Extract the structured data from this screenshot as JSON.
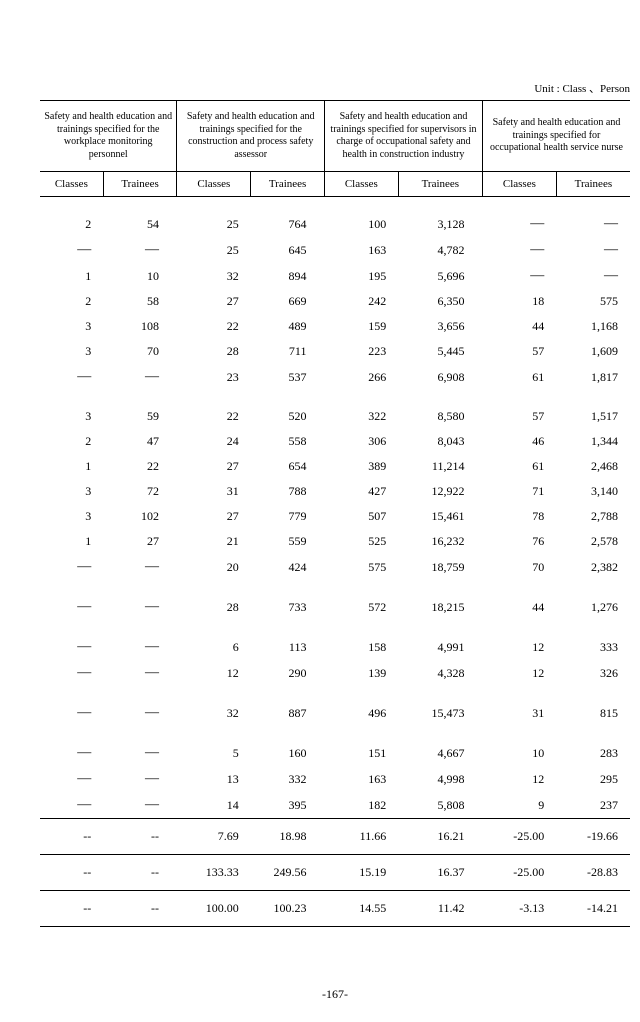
{
  "unit_label": "Unit : Class 、Person",
  "page_number": "-167-",
  "groups": [
    {
      "title": "Safety and health education and trainings specified for the workplace monitoring personnel"
    },
    {
      "title": "Safety and health education and trainings specified for the construction and process safety assessor"
    },
    {
      "title": "Safety and health education and trainings specified for supervisors in charge of occupational safety and health in construction industry"
    },
    {
      "title": "Safety and health education and trainings specified for occupational health service nurse"
    }
  ],
  "subheaders": [
    "Classes",
    "Trainees",
    "Classes",
    "Trainees",
    "Classes",
    "Trainees",
    "Classes",
    "Trainees"
  ],
  "sections": [
    {
      "rows": [
        [
          "2",
          "54",
          "25",
          "764",
          "100",
          "3,128",
          "―",
          "―"
        ],
        [
          "―",
          "―",
          "25",
          "645",
          "163",
          "4,782",
          "―",
          "―"
        ],
        [
          "1",
          "10",
          "32",
          "894",
          "195",
          "5,696",
          "―",
          "―"
        ],
        [
          "2",
          "58",
          "27",
          "669",
          "242",
          "6,350",
          "18",
          "575"
        ],
        [
          "3",
          "108",
          "22",
          "489",
          "159",
          "3,656",
          "44",
          "1,168"
        ],
        [
          "3",
          "70",
          "28",
          "711",
          "223",
          "5,445",
          "57",
          "1,609"
        ],
        [
          "―",
          "―",
          "23",
          "537",
          "266",
          "6,908",
          "61",
          "1,817"
        ]
      ]
    },
    {
      "rows": [
        [
          "3",
          "59",
          "22",
          "520",
          "322",
          "8,580",
          "57",
          "1,517"
        ],
        [
          "2",
          "47",
          "24",
          "558",
          "306",
          "8,043",
          "46",
          "1,344"
        ],
        [
          "1",
          "22",
          "27",
          "654",
          "389",
          "11,214",
          "61",
          "2,468"
        ],
        [
          "3",
          "72",
          "31",
          "788",
          "427",
          "12,922",
          "71",
          "3,140"
        ],
        [
          "3",
          "102",
          "27",
          "779",
          "507",
          "15,461",
          "78",
          "2,788"
        ],
        [
          "1",
          "27",
          "21",
          "559",
          "525",
          "16,232",
          "76",
          "2,578"
        ],
        [
          "―",
          "―",
          "20",
          "424",
          "575",
          "18,759",
          "70",
          "2,382"
        ]
      ]
    },
    {
      "rows": [
        [
          "―",
          "―",
          "28",
          "733",
          "572",
          "18,215",
          "44",
          "1,276"
        ]
      ]
    },
    {
      "rows": [
        [
          "―",
          "―",
          "6",
          "113",
          "158",
          "4,991",
          "12",
          "333"
        ],
        [
          "―",
          "―",
          "12",
          "290",
          "139",
          "4,328",
          "12",
          "326"
        ]
      ]
    },
    {
      "rows": [
        [
          "―",
          "―",
          "32",
          "887",
          "496",
          "15,473",
          "31",
          "815"
        ]
      ]
    },
    {
      "rows": [
        [
          "―",
          "―",
          "5",
          "160",
          "151",
          "4,667",
          "10",
          "283"
        ],
        [
          "―",
          "―",
          "13",
          "332",
          "163",
          "4,998",
          "12",
          "295"
        ],
        [
          "―",
          "―",
          "14",
          "395",
          "182",
          "5,808",
          "9",
          "237"
        ]
      ]
    }
  ],
  "footer_rows": [
    [
      "--",
      "--",
      "7.69",
      "18.98",
      "11.66",
      "16.21",
      "-25.00",
      "-19.66"
    ],
    [
      "--",
      "--",
      "133.33",
      "249.56",
      "15.19",
      "16.37",
      "-25.00",
      "-28.83"
    ],
    [
      "--",
      "--",
      "100.00",
      "100.23",
      "14.55",
      "11.42",
      "-3.13",
      "-14.21"
    ]
  ]
}
